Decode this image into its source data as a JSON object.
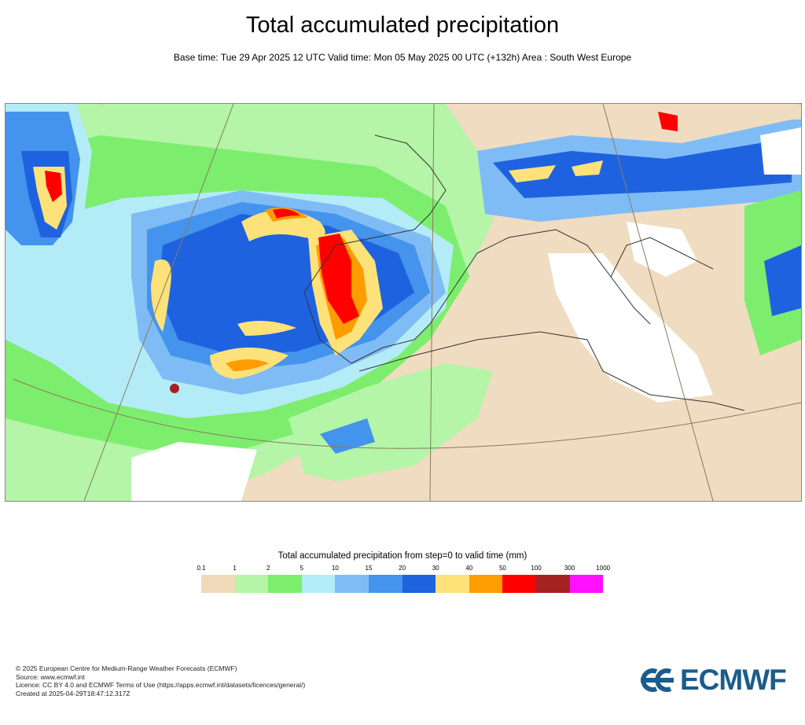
{
  "header": {
    "title": "Total accumulated precipitation",
    "subtitle": "Base time: Tue 29 Apr 2025 12 UTC Valid time: Mon 05 May 2025 00 UTC (+132h) Area : South West Europe"
  },
  "legend": {
    "title": "Total accumulated precipitation from step=0 to valid time (mm)",
    "thresholds": [
      "0.1",
      "1",
      "2",
      "5",
      "10",
      "15",
      "20",
      "30",
      "40",
      "50",
      "100",
      "300",
      "1000"
    ],
    "colors": [
      "#efd9b8",
      "#b4f5a8",
      "#7ded6e",
      "#b3ecf7",
      "#7fbcf5",
      "#4493ec",
      "#1f62e0",
      "#fde27a",
      "#ff9c00",
      "#ff0000",
      "#a52222",
      "#ff10ff"
    ]
  },
  "footer": {
    "lines": [
      "© 2025 European Centre for Medium-Range Weather Forecasts (ECMWF)",
      "Source: www.ecmwf.int",
      "Licence: CC BY 4.0 and ECMWF Terms of Use (https://apps.ecmwf.int/datasets/licences/general/)",
      "Created at 2025-04-29T18:47:12.317Z"
    ]
  },
  "logo": {
    "text": "ECMWF",
    "color": "#1a5c8c"
  }
}
